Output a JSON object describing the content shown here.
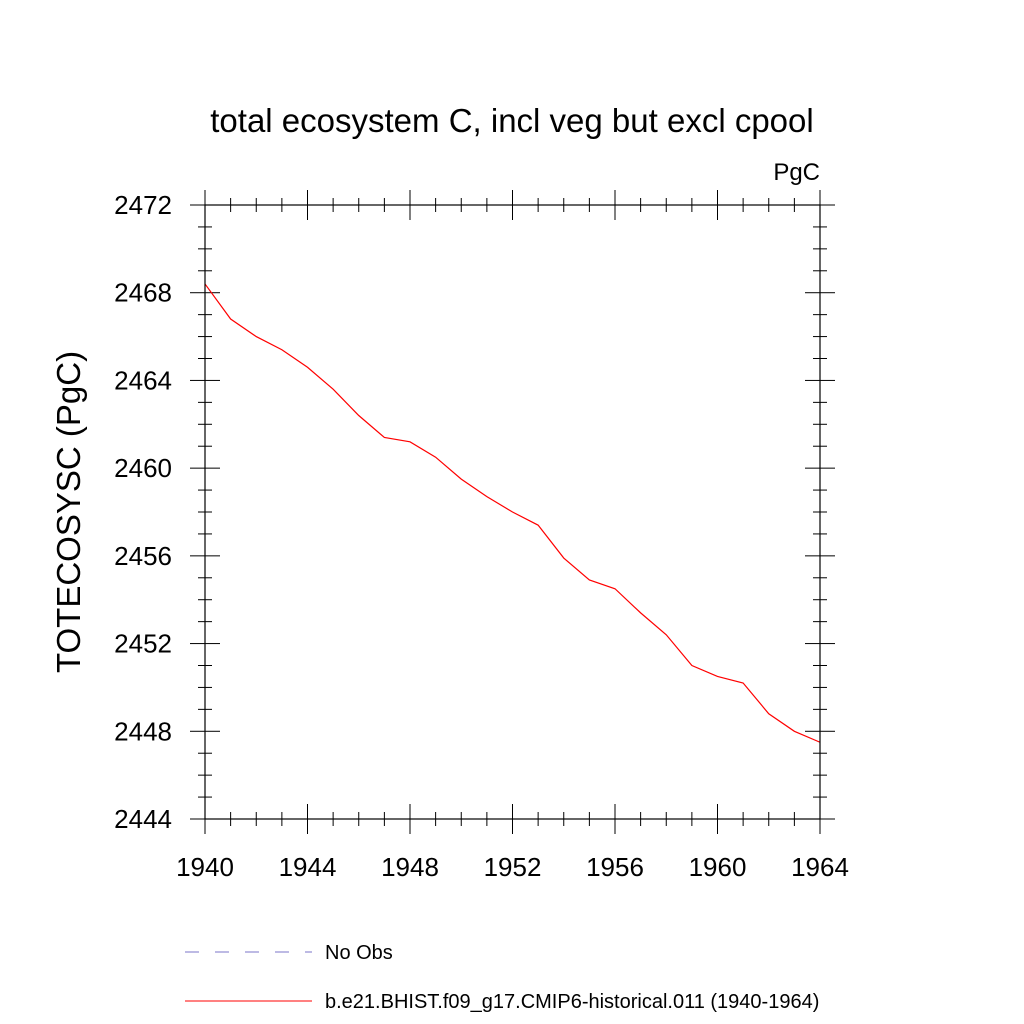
{
  "chart_data": {
    "type": "line",
    "title": "total ecosystem C, incl veg but excl cpool",
    "units": "PgC",
    "ylabel": "TOTECOSYSC  (PgC)",
    "xlabel": "",
    "xlim": [
      1940,
      1964
    ],
    "ylim": [
      2444,
      2472
    ],
    "x_ticks": [
      1940,
      1944,
      1948,
      1952,
      1956,
      1960,
      1964
    ],
    "y_ticks": [
      2444,
      2448,
      2452,
      2456,
      2460,
      2464,
      2468,
      2472
    ],
    "x_minor_step": 1,
    "y_minor_step": 1,
    "grid": false,
    "series": [
      {
        "name": "b.e21.BHIST.f09_g17.CMIP6-historical.011 (1940-1964)",
        "color": "#ff0000",
        "dash": "solid",
        "x": [
          1940,
          1941,
          1942,
          1943,
          1944,
          1945,
          1946,
          1947,
          1948,
          1949,
          1950,
          1951,
          1952,
          1953,
          1954,
          1955,
          1956,
          1957,
          1958,
          1959,
          1960,
          1961,
          1962,
          1963,
          1964
        ],
        "y": [
          2468.4,
          2466.8,
          2466.0,
          2465.4,
          2464.6,
          2463.6,
          2462.4,
          2461.4,
          2461.2,
          2460.5,
          2459.5,
          2458.7,
          2458.0,
          2457.4,
          2455.9,
          2454.9,
          2454.5,
          2453.4,
          2452.4,
          2451.0,
          2450.5,
          2450.2,
          2448.8,
          2448.0,
          2447.5
        ]
      }
    ],
    "legend": {
      "placement": "bottom-left",
      "entries": [
        {
          "label": "No Obs",
          "color": "#7b74c9",
          "dash": "dashed"
        },
        {
          "label": "b.e21.BHIST.f09_g17.CMIP6-historical.011 (1940-1964)",
          "color": "#ff0000",
          "dash": "solid"
        }
      ]
    }
  }
}
